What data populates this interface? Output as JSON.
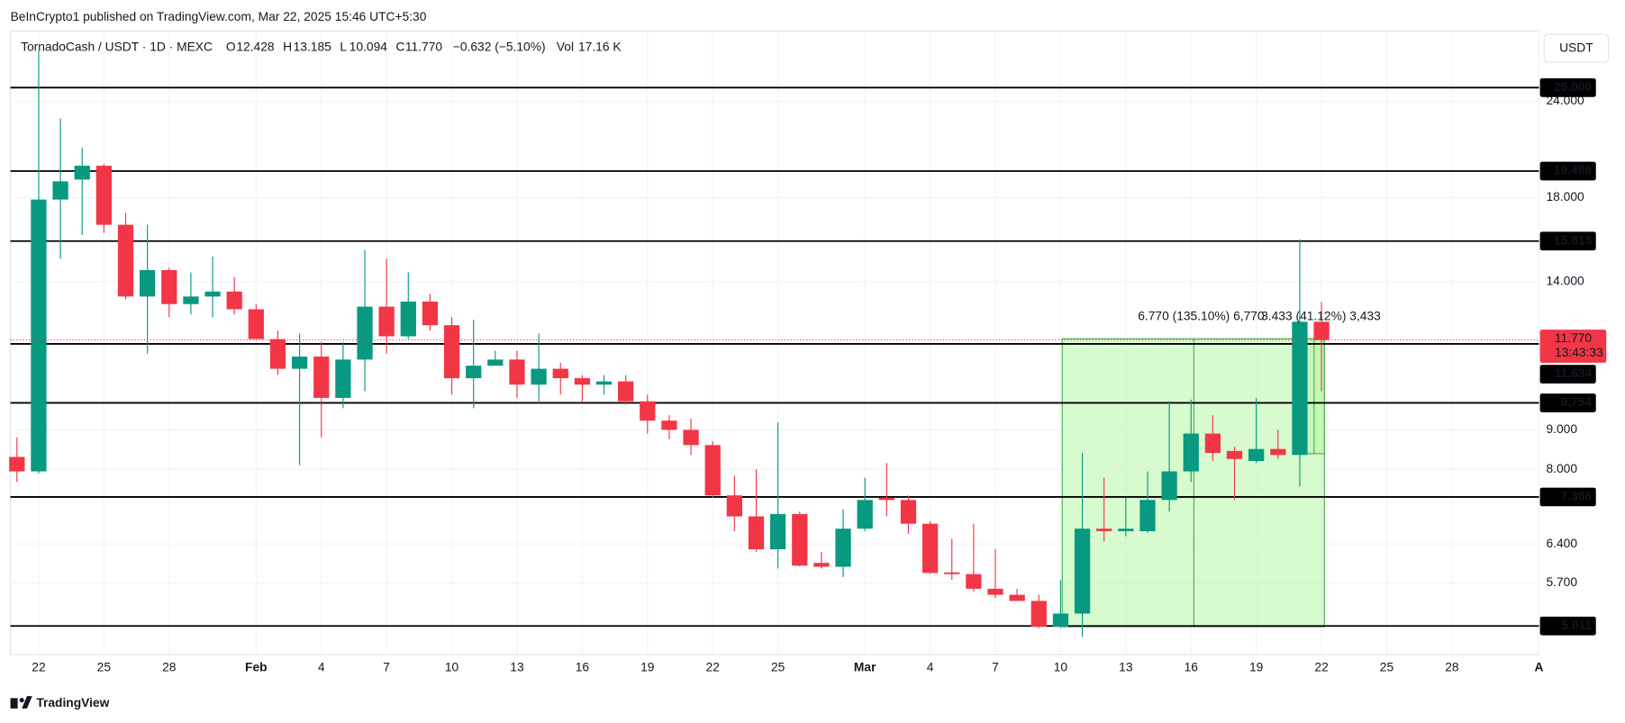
{
  "header": {
    "published": "BeInCrypto1 published on TradingView.com, Mar 22, 2025 15:46 UTC+5:30",
    "currency_button": "USDT",
    "footer": "TradingView"
  },
  "chart_data": {
    "type": "candlestick",
    "symbol": "TornadoCash / USDT · 1D · MEXC",
    "ohlc_legend": [
      {
        "name": "O",
        "value": 12.428,
        "label": "12.428"
      },
      {
        "name": "H",
        "value": 13.185,
        "label": "13.185"
      },
      {
        "name": "L",
        "value": 10.094,
        "label": "10.094"
      },
      {
        "name": "C",
        "value": 11.77,
        "label": "11.770"
      }
    ],
    "change": "−0.632 (−5.10%)",
    "volume_name": "Vol",
    "volume": "17.16 K",
    "up_color": "#089981",
    "down_color": "#f23645",
    "log_scale": true,
    "grid": true,
    "xlim": [
      -0.3,
      70
    ],
    "ylim": [
      4.6,
      29.6
    ],
    "xticks": [
      {
        "value": 1,
        "label": "22"
      },
      {
        "value": 4,
        "label": "25"
      },
      {
        "value": 7,
        "label": "28"
      },
      {
        "value": 11,
        "label": "Feb"
      },
      {
        "value": 14,
        "label": "4"
      },
      {
        "value": 17,
        "label": "7"
      },
      {
        "value": 20,
        "label": "10"
      },
      {
        "value": 23,
        "label": "13"
      },
      {
        "value": 26,
        "label": "16"
      },
      {
        "value": 29,
        "label": "19"
      },
      {
        "value": 32,
        "label": "22"
      },
      {
        "value": 35,
        "label": "25"
      },
      {
        "value": 39,
        "label": "Mar"
      },
      {
        "value": 42,
        "label": "4"
      },
      {
        "value": 45,
        "label": "7"
      },
      {
        "value": 48,
        "label": "10"
      },
      {
        "value": 51,
        "label": "13"
      },
      {
        "value": 54,
        "label": "16"
      },
      {
        "value": 57,
        "label": "19"
      },
      {
        "value": 60,
        "label": "22"
      },
      {
        "value": 63,
        "label": "25"
      },
      {
        "value": 66,
        "label": "28"
      },
      {
        "value": 70,
        "label": "A"
      }
    ],
    "yticks": [
      {
        "value": 24,
        "label": "24.000"
      },
      {
        "value": 18,
        "label": "18.000"
      },
      {
        "value": 14,
        "label": "14.000"
      },
      {
        "value": 9,
        "label": "9.000"
      },
      {
        "value": 8,
        "label": "8.000"
      },
      {
        "value": 6.4,
        "label": "6.400"
      },
      {
        "value": 5.7,
        "label": "5.700"
      }
    ],
    "open": [
      8.3,
      7.95,
      17.9,
      19.0,
      19.8,
      16.6,
      13.4,
      14.5,
      13.1,
      13.4,
      13.6,
      12.9,
      11.8,
      10.8,
      11.2,
      9.9,
      11.1,
      13.0,
      11.9,
      13.2,
      12.3,
      10.5,
      10.9,
      11.1,
      10.3,
      10.8,
      10.5,
      10.3,
      10.4,
      9.8,
      9.25,
      9.0,
      8.6,
      7.4,
      6.95,
      6.3,
      7.0,
      6.05,
      5.98,
      6.7,
      7.35,
      7.3,
      6.8,
      5.88,
      5.85,
      5.6,
      5.5,
      5.4,
      5.0,
      5.2,
      6.7,
      6.65,
      6.65,
      7.3,
      7.95,
      8.9,
      8.45,
      8.2,
      8.5,
      8.35,
      12.428
    ],
    "high": [
      8.8,
      27.9,
      22.8,
      20.9,
      19.9,
      17.2,
      16.6,
      14.6,
      14.4,
      15.1,
      14.2,
      13.1,
      12.1,
      12.0,
      11.7,
      11.7,
      15.4,
      15.0,
      14.4,
      13.5,
      12.6,
      12.5,
      11.4,
      11.4,
      12.0,
      11.0,
      10.6,
      10.6,
      10.6,
      10.0,
      9.4,
      9.3,
      8.7,
      7.85,
      8.0,
      9.2,
      7.05,
      6.25,
      7.1,
      7.8,
      8.15,
      7.4,
      6.85,
      6.5,
      6.8,
      6.3,
      5.6,
      5.5,
      5.75,
      8.4,
      7.8,
      7.35,
      7.95,
      9.8,
      9.85,
      9.4,
      8.55,
      9.9,
      9.0,
      15.9,
      13.185
    ],
    "low": [
      7.7,
      7.9,
      15.0,
      16.1,
      16.2,
      13.3,
      11.3,
      12.6,
      12.7,
      12.6,
      12.7,
      11.8,
      10.6,
      8.1,
      8.8,
      9.6,
      10.1,
      11.3,
      11.8,
      12.1,
      10.0,
      9.6,
      10.9,
      9.9,
      9.8,
      10.0,
      9.8,
      10.0,
      9.7,
      8.9,
      8.75,
      8.35,
      7.35,
      6.65,
      6.25,
      5.95,
      5.98,
      5.95,
      5.8,
      6.65,
      6.95,
      6.6,
      5.85,
      5.75,
      5.55,
      5.45,
      5.4,
      4.98,
      4.98,
      4.85,
      6.45,
      6.55,
      6.62,
      7.05,
      7.7,
      8.2,
      7.3,
      8.15,
      8.25,
      7.6,
      10.094
    ],
    "close": [
      7.95,
      17.9,
      18.9,
      19.8,
      16.6,
      13.4,
      14.5,
      13.1,
      13.4,
      13.6,
      12.9,
      11.8,
      10.8,
      11.2,
      9.9,
      11.1,
      13.0,
      11.9,
      13.2,
      12.3,
      10.5,
      10.9,
      11.1,
      10.3,
      10.8,
      10.5,
      10.3,
      10.4,
      9.8,
      9.25,
      9.0,
      8.6,
      7.4,
      6.95,
      6.3,
      7.0,
      6.0,
      5.98,
      6.7,
      7.3,
      7.3,
      6.8,
      5.87,
      5.85,
      5.6,
      5.5,
      5.4,
      5.0,
      5.2,
      6.7,
      6.65,
      6.7,
      7.3,
      7.95,
      8.9,
      8.4,
      8.25,
      8.5,
      8.35,
      12.428,
      11.77
    ],
    "levels": [
      {
        "value": 25,
        "label": "25.000"
      },
      {
        "value": 19.488,
        "label": "19.488"
      },
      {
        "value": 15.813,
        "label": "15.813"
      },
      {
        "value": 11.634,
        "label": "11.634"
      },
      {
        "value": 9.754,
        "label": "9.754"
      },
      {
        "value": 7.366,
        "label": "7.366"
      },
      {
        "value": 5.011,
        "label": "5.011"
      }
    ],
    "price_line": {
      "value": 11.77,
      "label": "11.770",
      "countdown": "13:43:33"
    },
    "measures": [
      "6.770 (135.10%) 6,770",
      "3.433 (41.12%) 3,433"
    ]
  }
}
